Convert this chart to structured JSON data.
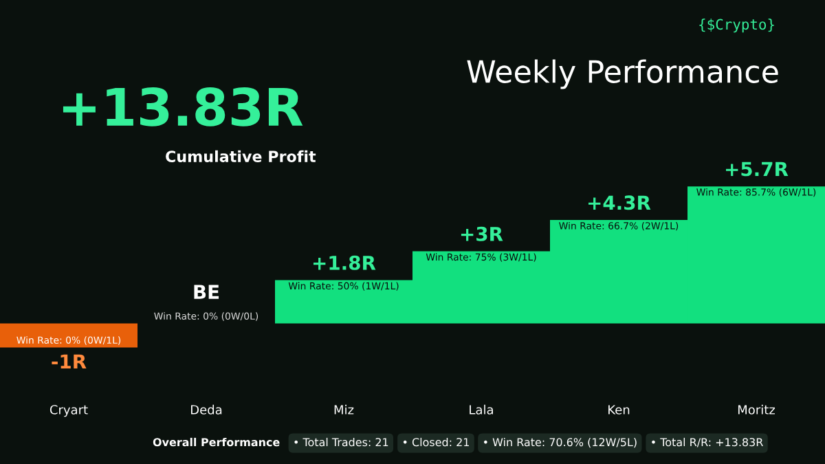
{
  "chart_data": {
    "type": "bar",
    "title": "Weekly Performance",
    "subtitle": "{$Crypto}",
    "categories": [
      "Cryart",
      "Deda",
      "Miz",
      "Lala",
      "Ken",
      "Moritz"
    ],
    "values": [
      -1,
      0,
      1.8,
      3,
      4.3,
      5.7
    ],
    "colors": [
      "#e8600a",
      "#f2f2f2",
      "#12e07f",
      "#12e07f",
      "#12e07f",
      "#12e07f"
    ],
    "value_labels": [
      "-1R",
      "BE",
      "+1.8R",
      "+3R",
      "+4.3R",
      "+5.7R"
    ],
    "tick_labels": "x",
    "annotations": [
      "+13.83R",
      "Cumulative Profit",
      "Overall Performance",
      "• Total Trades: 21",
      "• Closed: 21",
      "• Win Rate: 70.6% (12W/5L)",
      "• Total R/R: +13.83R",
      {
        "text": "Win Rate: 0% (0W/1L)",
        "x": "Cryart",
        "y": -1
      },
      {
        "text": "Win Rate: 0% (0W/0L)",
        "x": "Deda",
        "y": 0
      },
      {
        "text": "Win Rate: 50% (1W/1L)",
        "x": "Miz",
        "y": 1.8
      },
      {
        "text": "Win Rate: 75% (3W/1L)",
        "x": "Lala",
        "y": 3
      },
      {
        "text": "Win Rate: 66.7% (2W/1L)",
        "x": "Ken",
        "y": 4.3
      },
      {
        "text": "Win Rate: 85.7% (6W/1L)",
        "x": "Moritz",
        "y": 5.7
      }
    ]
  }
}
